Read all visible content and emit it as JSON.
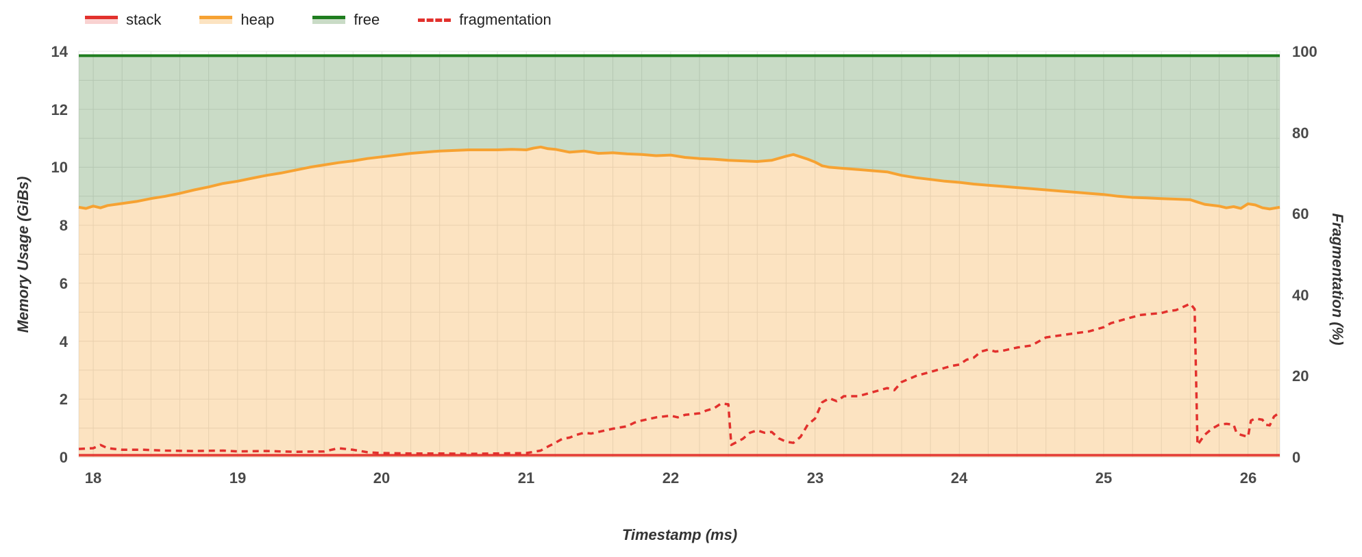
{
  "chart_data": {
    "type": "area",
    "xlabel": "Timestamp (ms)",
    "ylabel_left": "Memory Usage (GiBs)",
    "ylabel_right": "Fragmentation (%)",
    "x_domain": [
      17.9,
      26.22
    ],
    "y_left_domain": [
      0,
      14
    ],
    "y_right_domain": [
      0,
      100
    ],
    "x_ticks": [
      18,
      19,
      20,
      21,
      22,
      23,
      24,
      25,
      26
    ],
    "y_ticks_left": [
      0,
      2,
      4,
      6,
      8,
      10,
      12,
      14
    ],
    "y_ticks_right": [
      0,
      20,
      40,
      60,
      80,
      100
    ],
    "grid": {
      "x_minor_step": 0.2,
      "y_minor_step": 1
    },
    "colors": {
      "stack": "#e2312d",
      "heap": "#f6a232",
      "free": "#1f7d1f",
      "fragmentation": "#e2312d",
      "stack_fill": "rgba(226,49,45,0.25)",
      "heap_fill": "rgba(246,162,50,0.30)",
      "free_fill": "rgba(60,125,50,0.28)",
      "grid": "#e4e4e4",
      "tick_text": "#4a4a4a"
    },
    "legend": [
      {
        "name": "stack",
        "type": "area",
        "color": "#e2312d",
        "fill": "rgba(226,49,45,0.22)"
      },
      {
        "name": "heap",
        "type": "area",
        "color": "#f6a232",
        "fill": "rgba(246,162,50,0.30)"
      },
      {
        "name": "free",
        "type": "area",
        "color": "#1f7d1f",
        "fill": "rgba(60,125,50,0.28)"
      },
      {
        "name": "fragmentation",
        "type": "dashed-line",
        "color": "#e2312d"
      }
    ],
    "series": {
      "free": {
        "axis": "left",
        "points": [
          [
            17.9,
            13.85
          ],
          [
            26.22,
            13.85
          ]
        ]
      },
      "stack": {
        "axis": "left",
        "points": [
          [
            17.9,
            0.07
          ],
          [
            26.22,
            0.07
          ]
        ]
      },
      "heap": {
        "axis": "left",
        "points": [
          [
            17.9,
            8.62
          ],
          [
            17.95,
            8.58
          ],
          [
            18.0,
            8.66
          ],
          [
            18.05,
            8.6
          ],
          [
            18.1,
            8.68
          ],
          [
            18.2,
            8.75
          ],
          [
            18.3,
            8.82
          ],
          [
            18.4,
            8.92
          ],
          [
            18.5,
            9.0
          ],
          [
            18.6,
            9.1
          ],
          [
            18.7,
            9.22
          ],
          [
            18.8,
            9.32
          ],
          [
            18.9,
            9.44
          ],
          [
            19.0,
            9.52
          ],
          [
            19.1,
            9.62
          ],
          [
            19.2,
            9.72
          ],
          [
            19.3,
            9.8
          ],
          [
            19.4,
            9.9
          ],
          [
            19.5,
            10.0
          ],
          [
            19.6,
            10.08
          ],
          [
            19.7,
            10.16
          ],
          [
            19.8,
            10.22
          ],
          [
            19.9,
            10.3
          ],
          [
            20.0,
            10.36
          ],
          [
            20.1,
            10.42
          ],
          [
            20.2,
            10.48
          ],
          [
            20.3,
            10.52
          ],
          [
            20.4,
            10.56
          ],
          [
            20.5,
            10.58
          ],
          [
            20.6,
            10.6
          ],
          [
            20.7,
            10.6
          ],
          [
            20.8,
            10.6
          ],
          [
            20.9,
            10.62
          ],
          [
            21.0,
            10.6
          ],
          [
            21.05,
            10.66
          ],
          [
            21.1,
            10.7
          ],
          [
            21.15,
            10.64
          ],
          [
            21.2,
            10.62
          ],
          [
            21.3,
            10.52
          ],
          [
            21.4,
            10.56
          ],
          [
            21.5,
            10.48
          ],
          [
            21.6,
            10.5
          ],
          [
            21.7,
            10.46
          ],
          [
            21.8,
            10.44
          ],
          [
            21.9,
            10.4
          ],
          [
            22.0,
            10.42
          ],
          [
            22.1,
            10.34
          ],
          [
            22.2,
            10.3
          ],
          [
            22.3,
            10.28
          ],
          [
            22.4,
            10.24
          ],
          [
            22.5,
            10.22
          ],
          [
            22.6,
            10.2
          ],
          [
            22.7,
            10.24
          ],
          [
            22.8,
            10.38
          ],
          [
            22.85,
            10.44
          ],
          [
            22.9,
            10.36
          ],
          [
            22.95,
            10.28
          ],
          [
            23.0,
            10.18
          ],
          [
            23.05,
            10.05
          ],
          [
            23.1,
            10.0
          ],
          [
            23.2,
            9.96
          ],
          [
            23.3,
            9.92
          ],
          [
            23.4,
            9.88
          ],
          [
            23.5,
            9.84
          ],
          [
            23.6,
            9.72
          ],
          [
            23.7,
            9.64
          ],
          [
            23.8,
            9.58
          ],
          [
            23.9,
            9.52
          ],
          [
            24.0,
            9.48
          ],
          [
            24.1,
            9.42
          ],
          [
            24.2,
            9.38
          ],
          [
            24.3,
            9.34
          ],
          [
            24.4,
            9.3
          ],
          [
            24.5,
            9.26
          ],
          [
            24.6,
            9.22
          ],
          [
            24.7,
            9.18
          ],
          [
            24.8,
            9.14
          ],
          [
            24.9,
            9.1
          ],
          [
            25.0,
            9.06
          ],
          [
            25.1,
            9.0
          ],
          [
            25.2,
            8.96
          ],
          [
            25.3,
            8.94
          ],
          [
            25.4,
            8.92
          ],
          [
            25.5,
            8.9
          ],
          [
            25.6,
            8.88
          ],
          [
            25.65,
            8.8
          ],
          [
            25.7,
            8.72
          ],
          [
            25.8,
            8.66
          ],
          [
            25.85,
            8.6
          ],
          [
            25.9,
            8.64
          ],
          [
            25.95,
            8.58
          ],
          [
            26.0,
            8.74
          ],
          [
            26.05,
            8.7
          ],
          [
            26.1,
            8.6
          ],
          [
            26.15,
            8.56
          ],
          [
            26.22,
            8.62
          ]
        ]
      },
      "fragmentation": {
        "axis": "right",
        "points": [
          [
            17.9,
            2.0
          ],
          [
            18.0,
            2.2
          ],
          [
            18.05,
            3.0
          ],
          [
            18.1,
            2.2
          ],
          [
            18.2,
            1.8
          ],
          [
            18.35,
            1.8
          ],
          [
            18.5,
            1.6
          ],
          [
            18.7,
            1.5
          ],
          [
            18.9,
            1.6
          ],
          [
            19.0,
            1.4
          ],
          [
            19.2,
            1.5
          ],
          [
            19.4,
            1.3
          ],
          [
            19.6,
            1.4
          ],
          [
            19.7,
            2.2
          ],
          [
            19.8,
            1.8
          ],
          [
            19.9,
            1.2
          ],
          [
            20.0,
            1.0
          ],
          [
            20.2,
            0.9
          ],
          [
            20.4,
            0.9
          ],
          [
            20.6,
            0.8
          ],
          [
            20.8,
            0.9
          ],
          [
            21.0,
            1.0
          ],
          [
            21.1,
            1.6
          ],
          [
            21.15,
            2.6
          ],
          [
            21.2,
            3.5
          ],
          [
            21.25,
            4.5
          ],
          [
            21.3,
            4.8
          ],
          [
            21.35,
            5.5
          ],
          [
            21.4,
            6.0
          ],
          [
            21.45,
            5.8
          ],
          [
            21.5,
            6.2
          ],
          [
            21.6,
            7.0
          ],
          [
            21.7,
            7.6
          ],
          [
            21.75,
            8.5
          ],
          [
            21.8,
            9.0
          ],
          [
            21.9,
            9.8
          ],
          [
            22.0,
            10.2
          ],
          [
            22.05,
            9.8
          ],
          [
            22.1,
            10.4
          ],
          [
            22.2,
            10.8
          ],
          [
            22.25,
            11.5
          ],
          [
            22.3,
            12.0
          ],
          [
            22.35,
            13.2
          ],
          [
            22.4,
            13.0
          ],
          [
            22.42,
            3.0
          ],
          [
            22.5,
            4.5
          ],
          [
            22.55,
            6.0
          ],
          [
            22.6,
            6.6
          ],
          [
            22.65,
            6.0
          ],
          [
            22.7,
            6.2
          ],
          [
            22.75,
            4.6
          ],
          [
            22.8,
            3.8
          ],
          [
            22.85,
            3.5
          ],
          [
            22.9,
            5.0
          ],
          [
            22.95,
            8.0
          ],
          [
            23.0,
            9.5
          ],
          [
            23.05,
            13.5
          ],
          [
            23.1,
            14.5
          ],
          [
            23.15,
            13.8
          ],
          [
            23.2,
            15.0
          ],
          [
            23.3,
            15.0
          ],
          [
            23.4,
            16.0
          ],
          [
            23.5,
            17.0
          ],
          [
            23.55,
            16.5
          ],
          [
            23.6,
            18.5
          ],
          [
            23.7,
            20.0
          ],
          [
            23.8,
            21.0
          ],
          [
            23.9,
            22.0
          ],
          [
            23.95,
            22.5
          ],
          [
            24.0,
            22.8
          ],
          [
            24.05,
            24.0
          ],
          [
            24.1,
            24.5
          ],
          [
            24.15,
            26.0
          ],
          [
            24.2,
            26.5
          ],
          [
            24.25,
            26.0
          ],
          [
            24.3,
            26.2
          ],
          [
            24.4,
            27.0
          ],
          [
            24.5,
            27.5
          ],
          [
            24.55,
            28.5
          ],
          [
            24.6,
            29.5
          ],
          [
            24.7,
            30.0
          ],
          [
            24.8,
            30.5
          ],
          [
            24.9,
            31.0
          ],
          [
            25.0,
            32.0
          ],
          [
            25.05,
            33.0
          ],
          [
            25.1,
            33.5
          ],
          [
            25.2,
            34.5
          ],
          [
            25.25,
            35.0
          ],
          [
            25.3,
            35.2
          ],
          [
            25.4,
            35.5
          ],
          [
            25.45,
            36.0
          ],
          [
            25.5,
            36.2
          ],
          [
            25.55,
            37.0
          ],
          [
            25.6,
            37.8
          ],
          [
            25.63,
            36.5
          ],
          [
            25.65,
            3.0
          ],
          [
            25.7,
            5.5
          ],
          [
            25.75,
            7.0
          ],
          [
            25.8,
            8.0
          ],
          [
            25.85,
            8.2
          ],
          [
            25.9,
            8.0
          ],
          [
            25.92,
            6.0
          ],
          [
            25.95,
            5.5
          ],
          [
            26.0,
            5.0
          ],
          [
            26.02,
            9.0
          ],
          [
            26.05,
            9.5
          ],
          [
            26.1,
            9.2
          ],
          [
            26.12,
            8.0
          ],
          [
            26.15,
            7.8
          ],
          [
            26.18,
            10.0
          ],
          [
            26.22,
            11.0
          ]
        ]
      }
    }
  }
}
